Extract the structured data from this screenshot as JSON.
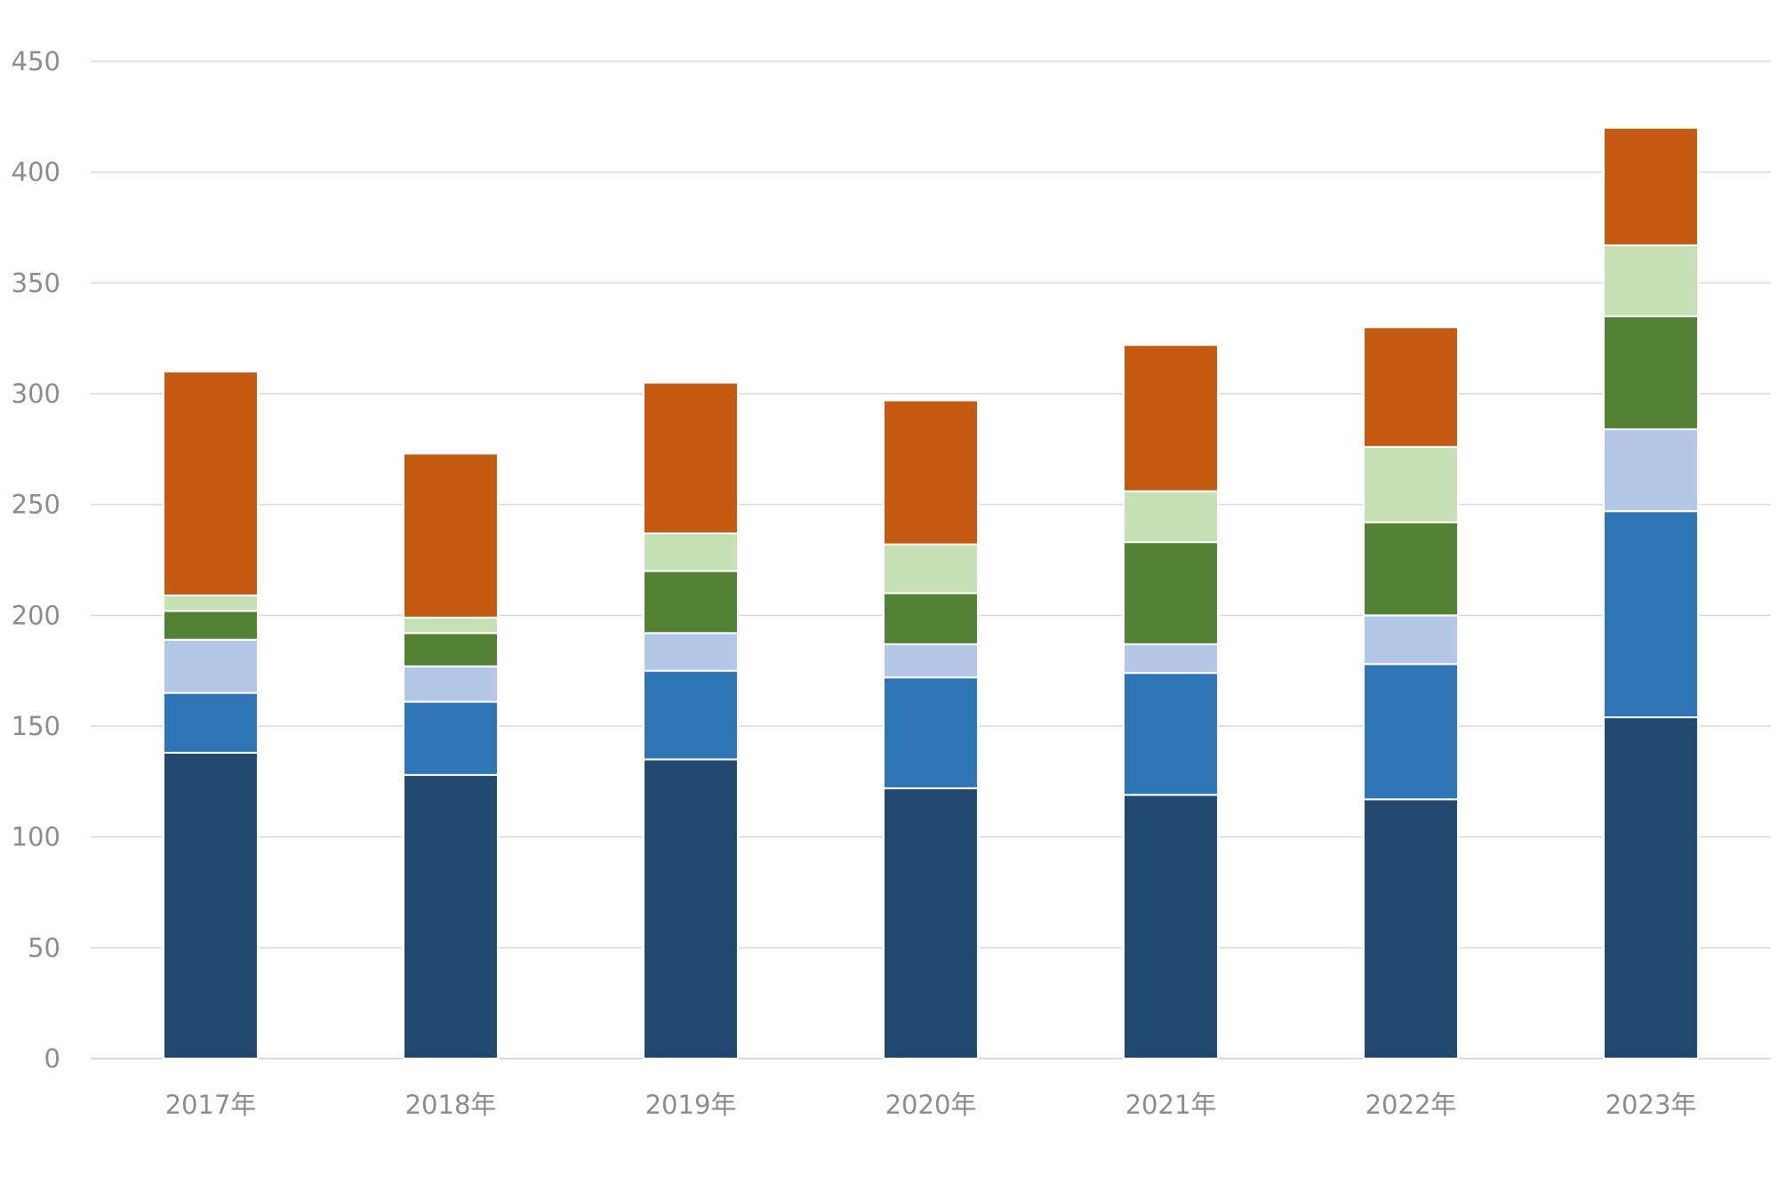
{
  "chart_data": {
    "type": "bar",
    "stacked": true,
    "categories": [
      "2017年",
      "2018年",
      "2019年",
      "2020年",
      "2021年",
      "2022年",
      "2023年"
    ],
    "series": [
      {
        "color": "#244970",
        "values": [
          138,
          128,
          135,
          122,
          119,
          117,
          154
        ]
      },
      {
        "color": "#2e75b6",
        "values": [
          27,
          33,
          40,
          50,
          55,
          61,
          93
        ]
      },
      {
        "color": "#b4c7e7",
        "values": [
          24,
          16,
          17,
          15,
          13,
          22,
          37
        ]
      },
      {
        "color": "#548235",
        "values": [
          13,
          15,
          28,
          23,
          46,
          42,
          51
        ]
      },
      {
        "color": "#c5e0b4",
        "values": [
          7,
          7,
          17,
          22,
          23,
          34,
          32
        ]
      },
      {
        "color": "#c55a11",
        "values": [
          101,
          74,
          68,
          65,
          66,
          54,
          53
        ]
      }
    ],
    "yticks": [
      "0",
      "50",
      "100",
      "150",
      "200",
      "250",
      "300",
      "350",
      "400",
      "450"
    ],
    "ylim": [
      0,
      450
    ],
    "grid": true,
    "legend": "none",
    "title": "",
    "xlabel": "",
    "ylabel": ""
  }
}
